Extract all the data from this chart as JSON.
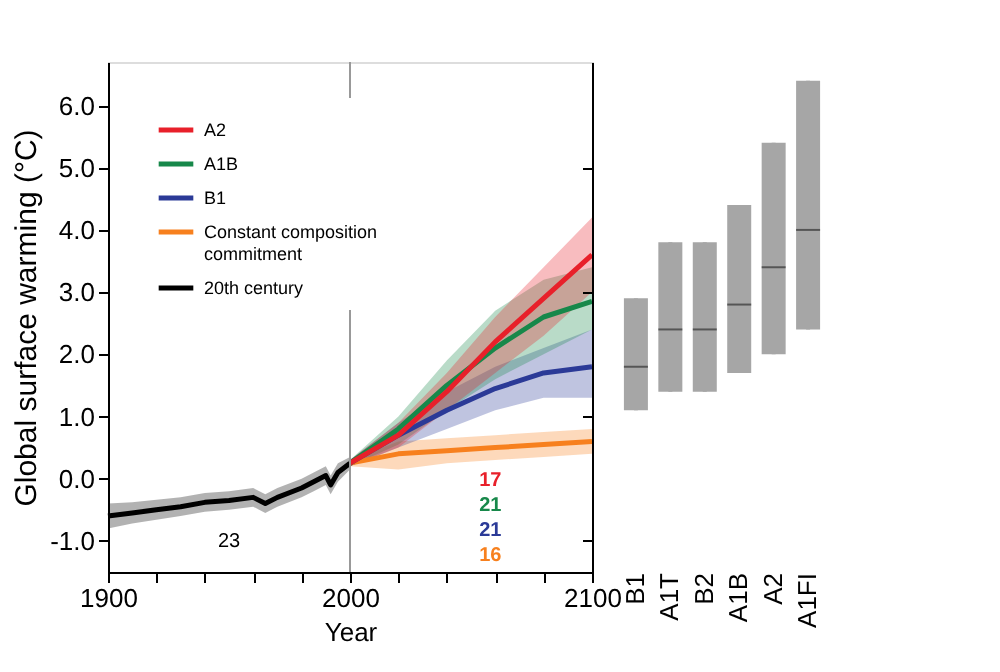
{
  "chart_data": [
    {
      "type": "line",
      "xlabel": "Year",
      "ylabel": "Global surface warming (°C)",
      "xlim": [
        1900,
        2100
      ],
      "ylim": [
        -1.5,
        6.7
      ],
      "xticks": [
        1900,
        {
          "value": 1920,
          "label": null
        },
        {
          "value": 1940,
          "label": null
        },
        {
          "value": 1960,
          "label": null
        },
        {
          "value": 1980,
          "label": null
        },
        2000,
        {
          "value": 2020,
          "label": null
        },
        {
          "value": 2040,
          "label": null
        },
        {
          "value": 2060,
          "label": null
        },
        {
          "value": 2080,
          "label": null
        },
        2100
      ],
      "yticks": [
        {
          "value": -1,
          "label": "-1.0"
        },
        {
          "value": 0,
          "label": "0.0"
        },
        {
          "value": 1,
          "label": "1.0"
        },
        {
          "value": 2,
          "label": "2.0"
        },
        {
          "value": 3,
          "label": "3.0"
        },
        {
          "value": 4,
          "label": "4.0"
        },
        {
          "value": 5,
          "label": "5.0"
        },
        {
          "value": 6,
          "label": "6.0"
        }
      ],
      "grid": false,
      "legend": "top left",
      "ref_lines": [
        {
          "axis": "x",
          "value": 2000,
          "color": "#999999"
        }
      ],
      "series": [
        {
          "name": "A2",
          "color": "#e8202a",
          "x": [
            2000,
            2020,
            2040,
            2060,
            2080,
            2100
          ],
          "values": [
            0.25,
            0.7,
            1.4,
            2.2,
            2.9,
            3.6
          ],
          "lower": [
            0.2,
            0.5,
            1.1,
            1.7,
            2.3,
            3.0
          ],
          "upper": [
            0.3,
            0.9,
            1.7,
            2.6,
            3.4,
            4.2
          ]
        },
        {
          "name": "A1B",
          "color": "#17884a",
          "x": [
            2000,
            2020,
            2040,
            2060,
            2080,
            2100
          ],
          "values": [
            0.25,
            0.8,
            1.5,
            2.1,
            2.6,
            2.85
          ],
          "lower": [
            0.2,
            0.55,
            1.1,
            1.6,
            2.0,
            2.4
          ],
          "upper": [
            0.3,
            1.0,
            1.9,
            2.7,
            3.2,
            3.4
          ]
        },
        {
          "name": "B1",
          "color": "#2b3a97",
          "x": [
            2000,
            2020,
            2040,
            2060,
            2080,
            2100
          ],
          "values": [
            0.25,
            0.7,
            1.1,
            1.45,
            1.7,
            1.8
          ],
          "lower": [
            0.2,
            0.5,
            0.8,
            1.1,
            1.3,
            1.3
          ],
          "upper": [
            0.3,
            0.9,
            1.4,
            1.8,
            2.1,
            2.4
          ]
        },
        {
          "name": "Constant composition commitment",
          "color": "#f7801e",
          "x": [
            2000,
            2020,
            2040,
            2060,
            2080,
            2100
          ],
          "values": [
            0.25,
            0.4,
            0.45,
            0.5,
            0.55,
            0.6
          ],
          "lower": [
            0.2,
            0.15,
            0.25,
            0.3,
            0.35,
            0.4
          ],
          "upper": [
            0.3,
            0.6,
            0.65,
            0.7,
            0.75,
            0.8
          ]
        },
        {
          "name": "20th century",
          "color": "#000000",
          "x": [
            1900,
            1910,
            1920,
            1930,
            1940,
            1950,
            1960,
            1965,
            1970,
            1980,
            1985,
            1990,
            1992,
            1995,
            2000
          ],
          "values": [
            -0.6,
            -0.55,
            -0.5,
            -0.45,
            -0.38,
            -0.35,
            -0.3,
            -0.4,
            -0.3,
            -0.15,
            -0.05,
            0.05,
            -0.1,
            0.1,
            0.25
          ],
          "lower": [
            -0.8,
            -0.72,
            -0.66,
            -0.6,
            -0.53,
            -0.5,
            -0.45,
            -0.55,
            -0.45,
            -0.3,
            -0.2,
            -0.1,
            -0.25,
            -0.05,
            0.15
          ],
          "upper": [
            -0.4,
            -0.38,
            -0.34,
            -0.3,
            -0.23,
            -0.2,
            -0.15,
            -0.25,
            -0.15,
            0.0,
            0.1,
            0.2,
            0.05,
            0.25,
            0.35
          ]
        }
      ],
      "annotations": [
        "17",
        "21",
        "21",
        "16",
        "23"
      ]
    },
    {
      "type": "box",
      "categories": [
        "B1",
        "A1T",
        "B2",
        "A1B",
        "A2",
        "A1FI"
      ],
      "ylim": [
        -1.5,
        6.7
      ],
      "tick_labels": "x",
      "color": "#a6a6a6",
      "yticks": [
        -1,
        0,
        1,
        2,
        3,
        4,
        5,
        6
      ],
      "boxes": [
        {
          "low": 1.1,
          "q1": 1.1,
          "median": 1.8,
          "q3": 2.9,
          "high": 2.9
        },
        {
          "low": 1.4,
          "q1": 1.4,
          "median": 2.4,
          "q3": 3.8,
          "high": 3.8
        },
        {
          "low": 1.4,
          "q1": 1.4,
          "median": 2.4,
          "q3": 3.8,
          "high": 3.8
        },
        {
          "low": 1.7,
          "q1": 1.7,
          "median": 2.8,
          "q3": 4.4,
          "high": 4.4
        },
        {
          "low": 2.0,
          "q1": 2.0,
          "median": 3.4,
          "q3": 5.4,
          "high": 5.4
        },
        {
          "low": 2.4,
          "q1": 2.4,
          "median": 4.0,
          "q3": 6.4,
          "high": 6.4
        }
      ]
    }
  ]
}
